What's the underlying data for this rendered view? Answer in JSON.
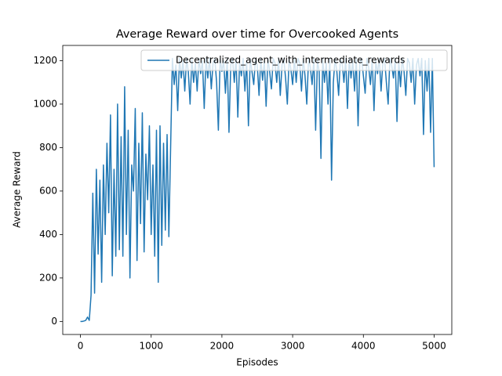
{
  "chart_data": {
    "type": "line",
    "title": "Average Reward over time for Overcooked Agents",
    "x_label": "Episodes",
    "y_label": "Average Reward",
    "x": [
      0,
      25,
      50,
      75,
      100,
      125,
      150,
      175,
      200,
      225,
      250,
      275,
      300,
      325,
      350,
      375,
      400,
      425,
      450,
      475,
      500,
      525,
      550,
      575,
      600,
      625,
      650,
      675,
      700,
      725,
      750,
      775,
      800,
      825,
      850,
      875,
      900,
      925,
      950,
      975,
      1000,
      1025,
      1050,
      1075,
      1100,
      1125,
      1150,
      1175,
      1200,
      1225,
      1250,
      1275,
      1300,
      1325,
      1350,
      1375,
      1400,
      1425,
      1450,
      1475,
      1500,
      1525,
      1550,
      1575,
      1600,
      1625,
      1650,
      1675,
      1700,
      1725,
      1750,
      1775,
      1800,
      1825,
      1850,
      1875,
      1900,
      1925,
      1950,
      1975,
      2000,
      2025,
      2050,
      2075,
      2100,
      2125,
      2150,
      2175,
      2200,
      2225,
      2250,
      2275,
      2300,
      2325,
      2350,
      2375,
      2400,
      2425,
      2450,
      2475,
      2500,
      2525,
      2550,
      2575,
      2600,
      2625,
      2650,
      2675,
      2700,
      2725,
      2750,
      2775,
      2800,
      2825,
      2850,
      2875,
      2900,
      2925,
      2950,
      2975,
      3000,
      3025,
      3050,
      3075,
      3100,
      3125,
      3150,
      3175,
      3200,
      3225,
      3250,
      3275,
      3300,
      3325,
      3350,
      3375,
      3400,
      3425,
      3450,
      3475,
      3500,
      3525,
      3550,
      3575,
      3600,
      3625,
      3650,
      3675,
      3700,
      3725,
      3750,
      3775,
      3800,
      3825,
      3850,
      3875,
      3900,
      3925,
      3950,
      3975,
      4000,
      4025,
      4050,
      4075,
      4100,
      4125,
      4150,
      4175,
      4200,
      4225,
      4250,
      4275,
      4300,
      4325,
      4350,
      4375,
      4400,
      4425,
      4450,
      4475,
      4500,
      4525,
      4550,
      4575,
      4600,
      4625,
      4650,
      4675,
      4700,
      4725,
      4750,
      4775,
      4800,
      4825,
      4850,
      4875,
      4900,
      4925,
      4950,
      4975,
      5000
    ],
    "series": [
      {
        "name": "Decentralized_agent_with_intermediate_rewards",
        "color": "#1f77b4",
        "values": [
          0,
          0,
          2,
          5,
          20,
          5,
          120,
          590,
          130,
          700,
          310,
          650,
          180,
          720,
          400,
          820,
          500,
          950,
          210,
          700,
          300,
          1000,
          330,
          850,
          300,
          1080,
          400,
          880,
          200,
          720,
          600,
          980,
          280,
          820,
          450,
          960,
          320,
          770,
          560,
          900,
          400,
          720,
          300,
          880,
          180,
          900,
          350,
          820,
          420,
          860,
          390,
          800,
          1210,
          1090,
          1180,
          970,
          1210,
          1120,
          1200,
          1060,
          1210,
          1150,
          1000,
          1210,
          1100,
          1190,
          1060,
          1210,
          1140,
          1200,
          980,
          1210,
          1120,
          1210,
          1070,
          1190,
          1210,
          1100,
          880,
          1210,
          1150,
          1200,
          1050,
          1210,
          870,
          1180,
          1210,
          1100,
          1210,
          940,
          1190,
          1130,
          1210,
          1060,
          1200,
          900,
          1210,
          1150,
          1090,
          1210,
          1180,
          1040,
          1210,
          1110,
          1200,
          990,
          1210,
          1150,
          1070,
          1210,
          1190,
          1100,
          1210,
          1040,
          1180,
          1210,
          1120,
          1000,
          1210,
          1160,
          1090,
          1210,
          1100,
          1210,
          1190,
          1060,
          1210,
          1130,
          1000,
          1210,
          1170,
          1090,
          1210,
          880,
          1200,
          1150,
          750,
          1210,
          1100,
          1190,
          1000,
          1210,
          650,
          1100,
          1210,
          1150,
          1040,
          1210,
          1190,
          1100,
          1210,
          980,
          1210,
          1120,
          1200,
          1060,
          1210,
          900,
          1190,
          1210,
          1130,
          1050,
          1210,
          1170,
          1090,
          1210,
          970,
          1200,
          1140,
          1210,
          1060,
          1190,
          1210,
          1100,
          1000,
          1210,
          1180,
          1120,
          1210,
          920,
          1200,
          1080,
          1210,
          1150,
          1040,
          1210,
          1190,
          1100,
          1210,
          1000,
          1180,
          1210,
          1130,
          1210,
          860,
          1200,
          1060,
          1210,
          870,
          1210,
          710
        ]
      }
    ],
    "xlim": [
      -250,
      5250
    ],
    "ylim": [
      -60,
      1270
    ],
    "xticks": [
      0,
      1000,
      2000,
      3000,
      4000,
      5000
    ],
    "yticks": [
      0,
      200,
      400,
      600,
      800,
      1000,
      1200
    ],
    "legend": "upper right"
  }
}
